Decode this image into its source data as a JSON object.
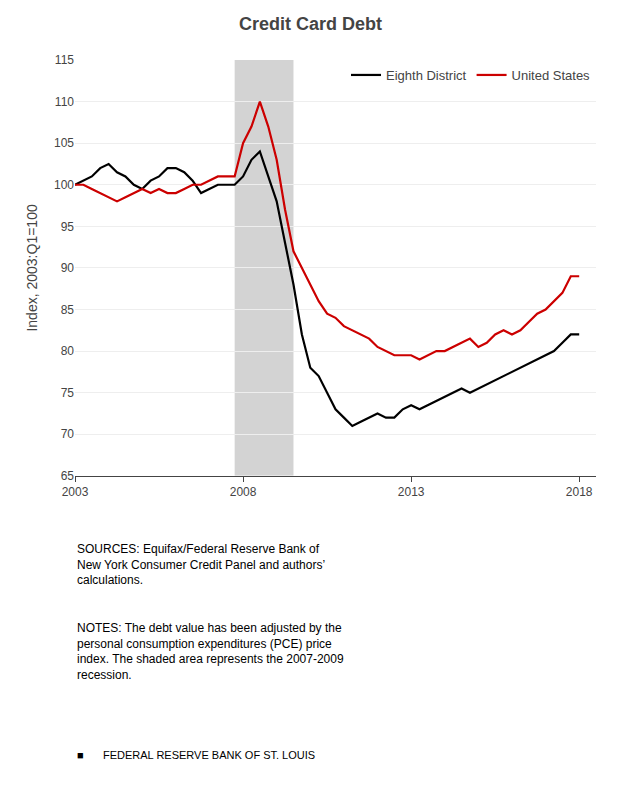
{
  "chart_data": {
    "type": "line",
    "title": "Credit Card Debt",
    "ylabel": "Index, 2003:Q1=100",
    "x": [
      2003.0,
      2003.25,
      2003.5,
      2003.75,
      2004.0,
      2004.25,
      2004.5,
      2004.75,
      2005.0,
      2005.25,
      2005.5,
      2005.75,
      2006.0,
      2006.25,
      2006.5,
      2006.75,
      2007.0,
      2007.25,
      2007.5,
      2007.75,
      2008.0,
      2008.25,
      2008.5,
      2008.75,
      2009.0,
      2009.25,
      2009.5,
      2009.75,
      2010.0,
      2010.25,
      2010.5,
      2010.75,
      2011.0,
      2011.25,
      2011.5,
      2011.75,
      2012.0,
      2012.25,
      2012.5,
      2012.75,
      2013.0,
      2013.25,
      2013.5,
      2013.75,
      2014.0,
      2014.25,
      2014.5,
      2014.75,
      2015.0,
      2015.25,
      2015.5,
      2015.75,
      2016.0,
      2016.25,
      2016.5,
      2016.75,
      2017.0,
      2017.25,
      2017.5,
      2017.75,
      2018.0
    ],
    "series": [
      {
        "name": "Eighth District",
        "color": "#000000",
        "values": [
          100,
          100.5,
          101,
          102,
          102.5,
          101.5,
          101,
          100,
          99.5,
          100.5,
          101,
          102,
          102,
          101.5,
          100.5,
          99,
          99.5,
          100,
          100,
          100,
          101,
          103,
          104,
          101,
          98,
          93,
          88,
          82,
          78,
          77,
          75,
          73,
          72,
          71,
          71.5,
          72,
          72.5,
          72,
          72,
          73,
          73.5,
          73,
          73.5,
          74,
          74.5,
          75,
          75.5,
          75,
          75.5,
          76,
          76.5,
          77,
          77.5,
          78,
          78.5,
          79,
          79.5,
          80,
          81,
          82,
          82
        ]
      },
      {
        "name": "United States",
        "color": "#cc0000",
        "values": [
          100,
          100,
          99.5,
          99,
          98.5,
          98,
          98.5,
          99,
          99.5,
          99,
          99.5,
          99,
          99,
          99.5,
          100,
          100,
          100.5,
          101,
          101,
          101,
          105,
          107,
          110,
          107,
          103,
          97,
          92,
          90,
          88,
          86,
          84.5,
          84,
          83,
          82.5,
          82,
          81.5,
          80.5,
          80,
          79.5,
          79.5,
          79.5,
          79,
          79.5,
          80,
          80,
          80.5,
          81,
          81.5,
          80.5,
          81,
          82,
          82.5,
          82,
          82.5,
          83.5,
          84.5,
          85,
          86,
          87,
          89,
          89
        ]
      }
    ],
    "shading": {
      "x0": 2007.75,
      "x1": 2009.5,
      "color": "#d3d3d3"
    },
    "xlim": [
      2003.0,
      2018.5
    ],
    "xticks": [
      2003,
      2008,
      2013,
      2018
    ],
    "ylim": [
      65,
      115
    ],
    "yticks": [
      65,
      70,
      75,
      80,
      85,
      90,
      95,
      100,
      105,
      110,
      115
    ],
    "grid": "y",
    "legend": "upper right",
    "annotations": [
      "SOURCES: Equifax/Federal Reserve Bank of\nNew York Consumer Credit Panel and authors’\ncalculations.",
      "NOTES: The debt value has been adjusted by the\npersonal consumption expenditures (PCE) price\nindex. The shaded area represents the 2007-2009\nrecession.",
      "■",
      "FEDERAL RESERVE BANK OF ST. LOUIS"
    ]
  }
}
